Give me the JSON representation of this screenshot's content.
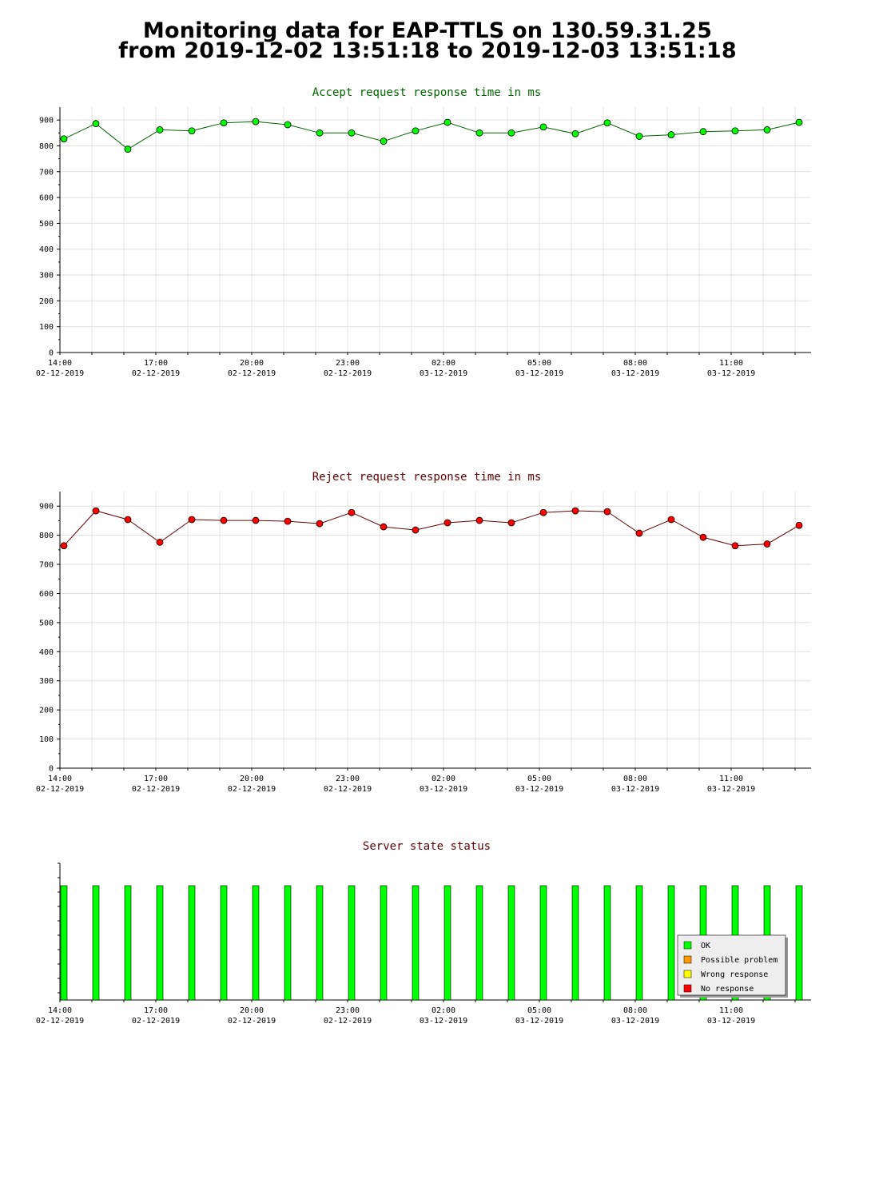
{
  "title": {
    "line1": "Monitoring data for EAP-TTLS on 130.59.31.25",
    "line2": "from 2019-12-02 13:51:18 to 2019-12-03 13:51:18"
  },
  "x_ticks": [
    {
      "time": "14:00",
      "date": "02-12-2019",
      "h": 0
    },
    {
      "time": "17:00",
      "date": "02-12-2019",
      "h": 3
    },
    {
      "time": "20:00",
      "date": "02-12-2019",
      "h": 6
    },
    {
      "time": "23:00",
      "date": "02-12-2019",
      "h": 9
    },
    {
      "time": "02:00",
      "date": "03-12-2019",
      "h": 12
    },
    {
      "time": "05:00",
      "date": "03-12-2019",
      "h": 15
    },
    {
      "time": "08:00",
      "date": "03-12-2019",
      "h": 18
    },
    {
      "time": "11:00",
      "date": "03-12-2019",
      "h": 21
    }
  ],
  "chart_data": [
    {
      "type": "line",
      "title": "Accept request response time in ms",
      "color": "#006600",
      "marker_color": "#00ff00",
      "x": [
        "02-12-2019 14:00",
        "02-12-2019 15:00",
        "02-12-2019 16:00",
        "02-12-2019 17:00",
        "02-12-2019 18:00",
        "02-12-2019 19:00",
        "02-12-2019 20:00",
        "02-12-2019 21:00",
        "02-12-2019 22:00",
        "02-12-2019 23:00",
        "03-12-2019 00:00",
        "03-12-2019 01:00",
        "03-12-2019 02:00",
        "03-12-2019 03:00",
        "03-12-2019 04:00",
        "03-12-2019 05:00",
        "03-12-2019 06:00",
        "03-12-2019 07:00",
        "03-12-2019 08:00",
        "03-12-2019 09:00",
        "03-12-2019 10:00",
        "03-12-2019 11:00",
        "03-12-2019 12:00",
        "03-12-2019 13:00"
      ],
      "values": [
        827,
        886,
        787,
        862,
        858,
        889,
        894,
        882,
        850,
        850,
        818,
        858,
        891,
        850,
        850,
        873,
        847,
        889,
        837,
        843,
        855,
        858,
        862,
        891
      ],
      "ylim": [
        0,
        950
      ],
      "yticks": [
        0,
        100,
        200,
        300,
        400,
        500,
        600,
        700,
        800,
        900
      ],
      "grid": true
    },
    {
      "type": "line",
      "title": "Reject request response time in ms",
      "color": "#660000",
      "marker_color": "#ff0000",
      "x": [
        "02-12-2019 14:00",
        "02-12-2019 15:00",
        "02-12-2019 16:00",
        "02-12-2019 17:00",
        "02-12-2019 18:00",
        "02-12-2019 19:00",
        "02-12-2019 20:00",
        "02-12-2019 21:00",
        "02-12-2019 22:00",
        "02-12-2019 23:00",
        "03-12-2019 00:00",
        "03-12-2019 01:00",
        "03-12-2019 02:00",
        "03-12-2019 03:00",
        "03-12-2019 04:00",
        "03-12-2019 05:00",
        "03-12-2019 06:00",
        "03-12-2019 07:00",
        "03-12-2019 08:00",
        "03-12-2019 09:00",
        "03-12-2019 10:00",
        "03-12-2019 11:00",
        "03-12-2019 12:00",
        "03-12-2019 13:00"
      ],
      "values": [
        764,
        884,
        854,
        776,
        854,
        851,
        851,
        848,
        840,
        878,
        829,
        818,
        843,
        851,
        843,
        878,
        884,
        881,
        807,
        854,
        793,
        764,
        770,
        834
      ],
      "ylim": [
        0,
        950
      ],
      "yticks": [
        0,
        100,
        200,
        300,
        400,
        500,
        600,
        700,
        800,
        900
      ],
      "grid": true
    },
    {
      "type": "bar",
      "title": "Server state status",
      "color": "#660000",
      "x": [
        "02-12-2019 14:00",
        "02-12-2019 15:00",
        "02-12-2019 16:00",
        "02-12-2019 17:00",
        "02-12-2019 18:00",
        "02-12-2019 19:00",
        "02-12-2019 20:00",
        "02-12-2019 21:00",
        "02-12-2019 22:00",
        "02-12-2019 23:00",
        "03-12-2019 00:00",
        "03-12-2019 01:00",
        "03-12-2019 02:00",
        "03-12-2019 03:00",
        "03-12-2019 04:00",
        "03-12-2019 05:00",
        "03-12-2019 06:00",
        "03-12-2019 07:00",
        "03-12-2019 08:00",
        "03-12-2019 09:00",
        "03-12-2019 10:00",
        "03-12-2019 11:00",
        "03-12-2019 12:00",
        "03-12-2019 13:00"
      ],
      "states": [
        "OK",
        "OK",
        "OK",
        "OK",
        "OK",
        "OK",
        "OK",
        "OK",
        "OK",
        "OK",
        "OK",
        "OK",
        "OK",
        "OK",
        "OK",
        "OK",
        "OK",
        "OK",
        "OK",
        "OK",
        "OK",
        "OK",
        "OK",
        "OK"
      ],
      "legend": [
        {
          "label": "OK",
          "color": "#00ff00"
        },
        {
          "label": "Possible problem",
          "color": "#ff9900"
        },
        {
          "label": "Wrong response",
          "color": "#ffff00"
        },
        {
          "label": "No response",
          "color": "#ff0000"
        }
      ],
      "legend_position": "bottom-right",
      "grid": false
    }
  ]
}
